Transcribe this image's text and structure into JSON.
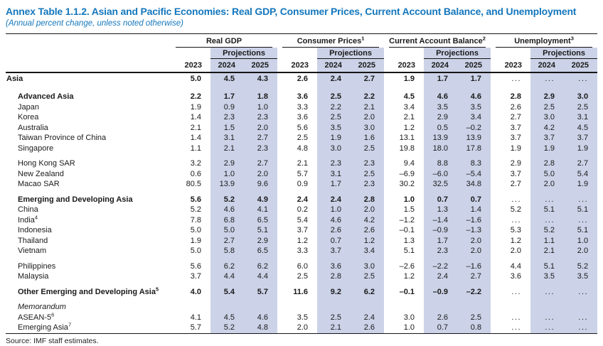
{
  "title": "Annex Table 1.1.2. Asian and Pacific Economies: Real GDP, Consumer Prices, Current Account Balance, and Unemployment",
  "subtitle": "(Annual percent change, unless noted otherwise)",
  "source": "Source: IMF staff estimates.",
  "colors": {
    "accent_blue": "#1477bd",
    "projection_band": "#ccd3e8",
    "rule": "#161616"
  },
  "table": {
    "projections_label": "Projections",
    "years": [
      "2023",
      "2024",
      "2025"
    ],
    "groups": [
      {
        "label": "Real GDP",
        "sup": ""
      },
      {
        "label": "Consumer Prices",
        "sup": "1"
      },
      {
        "label": "Current Account Balance",
        "sup": "2"
      },
      {
        "label": "Unemployment",
        "sup": "3"
      }
    ],
    "rows": [
      {
        "label": "Asia",
        "sup": "",
        "bold": true,
        "italic": false,
        "indent": 0,
        "spacer_before": false,
        "values": [
          "5.0",
          "4.5",
          "4.3",
          "2.6",
          "2.4",
          "2.7",
          "1.9",
          "1.7",
          "1.7",
          "...",
          "...",
          "..."
        ]
      },
      {
        "label": "Advanced Asia",
        "sup": "",
        "bold": true,
        "italic": false,
        "indent": 1,
        "spacer_before": true,
        "values": [
          "2.2",
          "1.7",
          "1.8",
          "3.6",
          "2.5",
          "2.2",
          "4.5",
          "4.6",
          "4.6",
          "2.8",
          "2.9",
          "3.0"
        ]
      },
      {
        "label": "Japan",
        "sup": "",
        "bold": false,
        "italic": false,
        "indent": 1,
        "spacer_before": false,
        "values": [
          "1.9",
          "0.9",
          "1.0",
          "3.3",
          "2.2",
          "2.1",
          "3.4",
          "3.5",
          "3.5",
          "2.6",
          "2.5",
          "2.5"
        ]
      },
      {
        "label": "Korea",
        "sup": "",
        "bold": false,
        "italic": false,
        "indent": 1,
        "spacer_before": false,
        "values": [
          "1.4",
          "2.3",
          "2.3",
          "3.6",
          "2.5",
          "2.0",
          "2.1",
          "2.9",
          "3.4",
          "2.7",
          "3.0",
          "3.1"
        ]
      },
      {
        "label": "Australia",
        "sup": "",
        "bold": false,
        "italic": false,
        "indent": 1,
        "spacer_before": false,
        "values": [
          "2.1",
          "1.5",
          "2.0",
          "5.6",
          "3.5",
          "3.0",
          "1.2",
          "0.5",
          "–0.2",
          "3.7",
          "4.2",
          "4.5"
        ]
      },
      {
        "label": "Taiwan Province of China",
        "sup": "",
        "bold": false,
        "italic": false,
        "indent": 1,
        "spacer_before": false,
        "values": [
          "1.4",
          "3.1",
          "2.7",
          "2.5",
          "1.9",
          "1.6",
          "13.1",
          "13.9",
          "13.9",
          "3.7",
          "3.7",
          "3.7"
        ]
      },
      {
        "label": "Singapore",
        "sup": "",
        "bold": false,
        "italic": false,
        "indent": 1,
        "spacer_before": false,
        "values": [
          "1.1",
          "2.1",
          "2.3",
          "4.8",
          "3.0",
          "2.5",
          "19.8",
          "18.0",
          "17.8",
          "1.9",
          "1.9",
          "1.9"
        ]
      },
      {
        "label": "Hong Kong SAR",
        "sup": "",
        "bold": false,
        "italic": false,
        "indent": 1,
        "spacer_before": true,
        "values": [
          "3.2",
          "2.9",
          "2.7",
          "2.1",
          "2.3",
          "2.3",
          "9.4",
          "8.8",
          "8.3",
          "2.9",
          "2.8",
          "2.7"
        ]
      },
      {
        "label": "New Zealand",
        "sup": "",
        "bold": false,
        "italic": false,
        "indent": 1,
        "spacer_before": false,
        "values": [
          "0.6",
          "1.0",
          "2.0",
          "5.7",
          "3.1",
          "2.5",
          "–6.9",
          "–6.0",
          "–5.4",
          "3.7",
          "5.0",
          "5.4"
        ]
      },
      {
        "label": "Macao SAR",
        "sup": "",
        "bold": false,
        "italic": false,
        "indent": 1,
        "spacer_before": false,
        "values": [
          "80.5",
          "13.9",
          "9.6",
          "0.9",
          "1.7",
          "2.3",
          "30.2",
          "32.5",
          "34.8",
          "2.7",
          "2.0",
          "1.9"
        ]
      },
      {
        "label": "Emerging and Developing Asia",
        "sup": "",
        "bold": true,
        "italic": false,
        "indent": 1,
        "spacer_before": true,
        "values": [
          "5.6",
          "5.2",
          "4.9",
          "2.4",
          "2.4",
          "2.8",
          "1.0",
          "0.7",
          "0.7",
          "...",
          "...",
          "..."
        ]
      },
      {
        "label": "China",
        "sup": "",
        "bold": false,
        "italic": false,
        "indent": 1,
        "spacer_before": false,
        "values": [
          "5.2",
          "4.6",
          "4.1",
          "0.2",
          "1.0",
          "2.0",
          "1.5",
          "1.3",
          "1.4",
          "5.2",
          "5.1",
          "5.1"
        ]
      },
      {
        "label": "India",
        "sup": "4",
        "bold": false,
        "italic": false,
        "indent": 1,
        "spacer_before": false,
        "values": [
          "7.8",
          "6.8",
          "6.5",
          "5.4",
          "4.6",
          "4.2",
          "–1.2",
          "–1.4",
          "–1.6",
          "...",
          "...",
          "..."
        ]
      },
      {
        "label": "Indonesia",
        "sup": "",
        "bold": false,
        "italic": false,
        "indent": 1,
        "spacer_before": false,
        "values": [
          "5.0",
          "5.0",
          "5.1",
          "3.7",
          "2.6",
          "2.6",
          "–0.1",
          "–0.9",
          "–1.3",
          "5.3",
          "5.2",
          "5.1"
        ]
      },
      {
        "label": "Thailand",
        "sup": "",
        "bold": false,
        "italic": false,
        "indent": 1,
        "spacer_before": false,
        "values": [
          "1.9",
          "2.7",
          "2.9",
          "1.2",
          "0.7",
          "1.2",
          "1.3",
          "1.7",
          "2.0",
          "1.2",
          "1.1",
          "1.0"
        ]
      },
      {
        "label": "Vietnam",
        "sup": "",
        "bold": false,
        "italic": false,
        "indent": 1,
        "spacer_before": false,
        "values": [
          "5.0",
          "5.8",
          "6.5",
          "3.3",
          "3.7",
          "3.4",
          "5.1",
          "2.3",
          "2.0",
          "2.0",
          "2.1",
          "2.0"
        ]
      },
      {
        "label": "Philippines",
        "sup": "",
        "bold": false,
        "italic": false,
        "indent": 1,
        "spacer_before": true,
        "values": [
          "5.6",
          "6.2",
          "6.2",
          "6.0",
          "3.6",
          "3.0",
          "–2.6",
          "–2.2",
          "–1.6",
          "4.4",
          "5.1",
          "5.2"
        ]
      },
      {
        "label": "Malaysia",
        "sup": "",
        "bold": false,
        "italic": false,
        "indent": 1,
        "spacer_before": false,
        "values": [
          "3.7",
          "4.4",
          "4.4",
          "2.5",
          "2.8",
          "2.5",
          "1.2",
          "2.4",
          "2.7",
          "3.6",
          "3.5",
          "3.5"
        ]
      },
      {
        "label": "Other Emerging and Developing Asia",
        "sup": "5",
        "bold": true,
        "italic": false,
        "indent": 1,
        "spacer_before": true,
        "values": [
          "4.0",
          "5.4",
          "5.7",
          "11.6",
          "9.2",
          "6.2",
          "–0.1",
          "–0.9",
          "–2.2",
          "...",
          "...",
          "..."
        ]
      },
      {
        "label": "Memorandum",
        "sup": "",
        "bold": false,
        "italic": true,
        "indent": 1,
        "spacer_before": true,
        "values": [
          "",
          "",
          "",
          "",
          "",
          "",
          "",
          "",
          "",
          "",
          "",
          ""
        ]
      },
      {
        "label": "ASEAN-5",
        "sup": "6",
        "bold": false,
        "italic": false,
        "indent": 1,
        "spacer_before": false,
        "values": [
          "4.1",
          "4.5",
          "4.6",
          "3.5",
          "2.5",
          "2.4",
          "3.0",
          "2.6",
          "2.5",
          "...",
          "...",
          "..."
        ]
      },
      {
        "label": "Emerging Asia",
        "sup": "7",
        "bold": false,
        "italic": false,
        "indent": 1,
        "spacer_before": false,
        "values": [
          "5.7",
          "5.2",
          "4.8",
          "2.0",
          "2.1",
          "2.6",
          "1.0",
          "0.7",
          "0.8",
          "...",
          "...",
          "..."
        ]
      }
    ]
  }
}
